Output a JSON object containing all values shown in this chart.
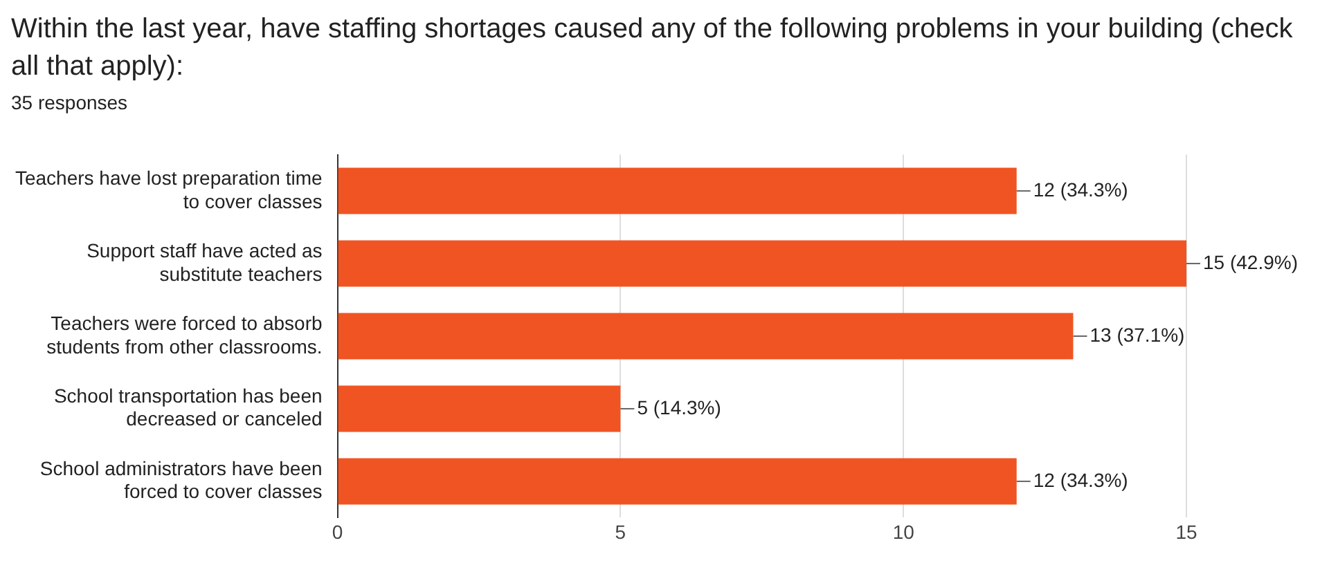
{
  "chart_data": {
    "type": "bar",
    "orientation": "horizontal",
    "title": "Within the last year, have staffing shortages caused any of the following problems in your building (check all that apply):",
    "subtitle": "35 responses",
    "categories": [
      "Teachers have lost preparation time to cover classes",
      "Support staff have acted as substitute teachers",
      "Teachers were forced to absorb students from other classrooms.",
      "School transportation has been decreased or canceled",
      "School administrators have been forced to cover classes"
    ],
    "values": [
      12,
      15,
      13,
      5,
      12
    ],
    "value_labels": [
      "12 (34.3%)",
      "15 (42.9%)",
      "13 (37.1%)",
      "5 (14.3%)",
      "12 (34.3%)"
    ],
    "color": "#f05423",
    "xlim": [
      0,
      15
    ],
    "xticks": [
      0,
      5,
      10,
      15
    ],
    "grid": "x",
    "legend": false
  }
}
